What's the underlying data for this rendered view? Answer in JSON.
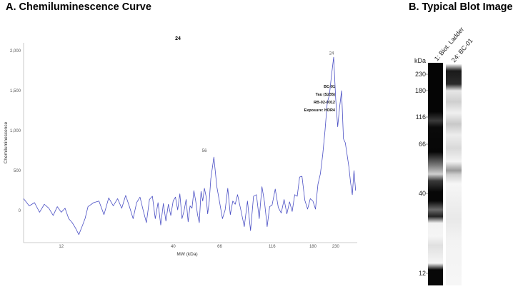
{
  "panel_a_title": "A. Chemiluminescence Curve",
  "panel_b_title": "B.  Typical Blot Image",
  "chart_data": {
    "type": "line",
    "title": "24",
    "xlabel": "MW (kDa)",
    "ylabel": "Chemiluminescence",
    "x_scale": "log",
    "xlim": [
      8,
      290
    ],
    "ylim": [
      -400,
      2100
    ],
    "x_ticks": [
      12,
      40,
      66,
      116,
      180,
      230
    ],
    "x_tick_labels": [
      "12",
      "40",
      "66",
      "116",
      "180",
      "230"
    ],
    "y_ticks": [
      0,
      500,
      1000,
      1500,
      2000
    ],
    "y_tick_labels": [
      "0",
      "500",
      "1,000",
      "1,500",
      "2,000"
    ],
    "series": [
      {
        "color": "#4a4fc4",
        "x": [
          8.0,
          8.5,
          9.0,
          9.5,
          10.0,
          10.5,
          11.0,
          11.5,
          12.0,
          12.5,
          13.0,
          13.5,
          14.0,
          14.5,
          15.0,
          15.5,
          16.0,
          17.0,
          18.0,
          19.0,
          20.0,
          21.0,
          22.0,
          23.0,
          24.0,
          25.0,
          26.0,
          27.0,
          28.0,
          29.0,
          30.0,
          31.0,
          32.0,
          33.0,
          34.0,
          35.0,
          36.0,
          37.0,
          38.0,
          39.0,
          40.0,
          41.0,
          42.0,
          43.0,
          44.0,
          45.0,
          46.0,
          47.0,
          48.0,
          49.0,
          50.0,
          51.0,
          52.0,
          53.0,
          54.0,
          55.0,
          56.0,
          57.0,
          58.0,
          59.0,
          60.0,
          62.0,
          64.0,
          66.0,
          68.0,
          70.0,
          72.0,
          74.0,
          76.0,
          78.0,
          80.0,
          83.0,
          86.0,
          89.0,
          92.0,
          95.0,
          98.0,
          101.0,
          104.0,
          107.0,
          110.0,
          113.0,
          116.0,
          120.0,
          124.0,
          128.0,
          132.0,
          136.0,
          140.0,
          144.0,
          148.0,
          152.0,
          156.0,
          160.0,
          165.0,
          170.0,
          175.0,
          180.0,
          185.0,
          190.0,
          195.0,
          200.0,
          205.0,
          210.0,
          215.0,
          220.0,
          225.0,
          230.0,
          235.0,
          240.0,
          245.0,
          250.0,
          255.0,
          260.0,
          265.0,
          270.0,
          275.0,
          280.0,
          285.0
        ],
        "y": [
          150,
          60,
          100,
          -20,
          80,
          30,
          -60,
          50,
          -20,
          30,
          -100,
          -150,
          -220,
          -300,
          -200,
          -100,
          50,
          100,
          120,
          -50,
          160,
          60,
          150,
          30,
          190,
          50,
          -100,
          100,
          170,
          0,
          -150,
          140,
          180,
          -100,
          100,
          -180,
          90,
          -130,
          80,
          -60,
          120,
          170,
          10,
          210,
          -100,
          0,
          140,
          -140,
          60,
          30,
          250,
          120,
          -50,
          -150,
          240,
          120,
          280,
          180,
          -40,
          120,
          400,
          670,
          300,
          100,
          -100,
          10,
          280,
          -50,
          120,
          80,
          200,
          0,
          -200,
          120,
          -250,
          180,
          200,
          -100,
          300,
          100,
          -200,
          50,
          70,
          270,
          40,
          -30,
          140,
          -40,
          110,
          -10,
          200,
          180,
          420,
          430,
          130,
          20,
          150,
          120,
          20,
          330,
          460,
          700,
          1000,
          1350,
          1450,
          1700,
          1920,
          1400,
          1050,
          1300,
          1500,
          900,
          850,
          700,
          550,
          350,
          200,
          500,
          250
        ]
      }
    ],
    "annotations": [
      {
        "x": 56,
        "y": 680,
        "text": "56"
      },
      {
        "x": 220,
        "y": 1900,
        "text": "24"
      }
    ],
    "info_box": [
      "BC-01",
      "Tau (S235)",
      "RB-02-0012",
      "Exposure: HDR4"
    ]
  },
  "blot": {
    "kda_label": "kDa",
    "lane_labels": [
      "1: Biot. Ladder",
      "24: BC-01"
    ],
    "markers": [
      "230",
      "180",
      "116",
      "66",
      "40",
      "12"
    ]
  }
}
